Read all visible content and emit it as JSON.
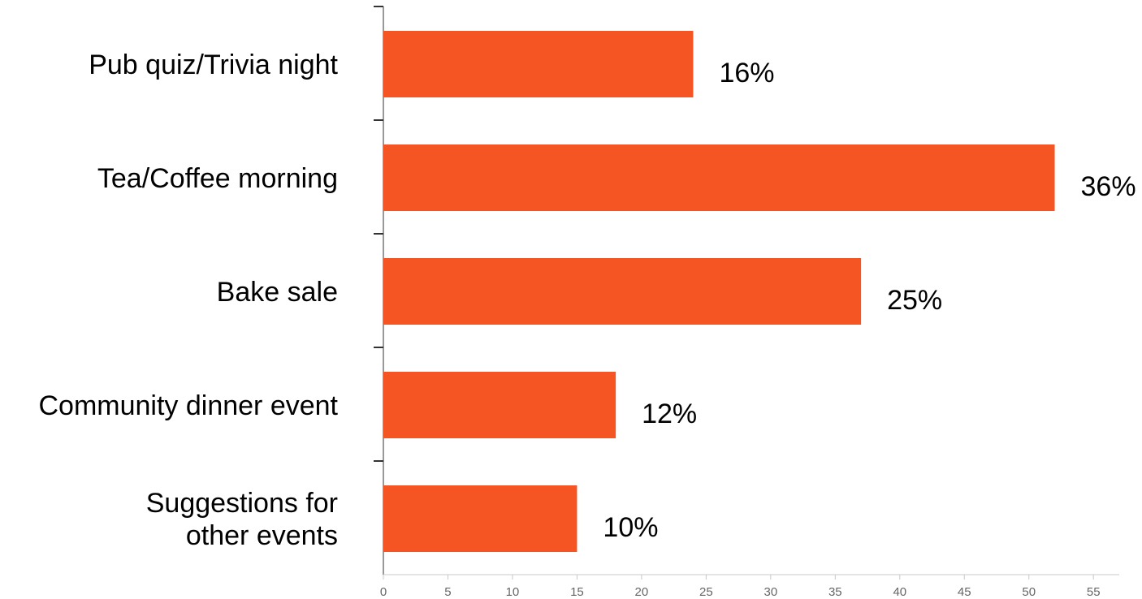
{
  "chart_data": {
    "type": "bar",
    "orientation": "horizontal",
    "categories": [
      [
        "Pub quiz/Trivia night"
      ],
      [
        "Tea/Coffee morning"
      ],
      [
        "Bake sale"
      ],
      [
        "Community dinner event"
      ],
      [
        "Suggestions for",
        "other events"
      ]
    ],
    "values": [
      24,
      52,
      37,
      18,
      15
    ],
    "data_labels": [
      "16%",
      "36%",
      "25%",
      "12%",
      "10%"
    ],
    "xlim": [
      0,
      57
    ],
    "xticks": [
      0,
      5,
      10,
      15,
      20,
      25,
      30,
      35,
      40,
      45,
      50,
      55
    ],
    "bar_color": "#f55523",
    "grid": false,
    "legend": "none"
  }
}
